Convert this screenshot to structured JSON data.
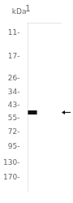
{
  "chart_data": {
    "type": "scatter",
    "y_label": "kDa",
    "categories": [
      "1"
    ],
    "values": [
      49.5
    ],
    "color": "#111111",
    "marker": "line",
    "log": "y",
    "ylim": [
      220,
      9
    ],
    "yticks": [
      {
        "value": 170,
        "label": "170-"
      },
      {
        "value": 130,
        "label": "130-"
      },
      {
        "value": 95,
        "label": "95-"
      },
      {
        "value": 72,
        "label": "72-"
      },
      {
        "value": 55,
        "label": "55-"
      },
      {
        "value": 43,
        "label": "43-"
      },
      {
        "value": 34,
        "label": "34-"
      },
      {
        "value": 26,
        "label": "26-"
      },
      {
        "value": 17,
        "label": "17-"
      },
      {
        "value": 11,
        "label": "11-"
      }
    ],
    "grid": false
  }
}
